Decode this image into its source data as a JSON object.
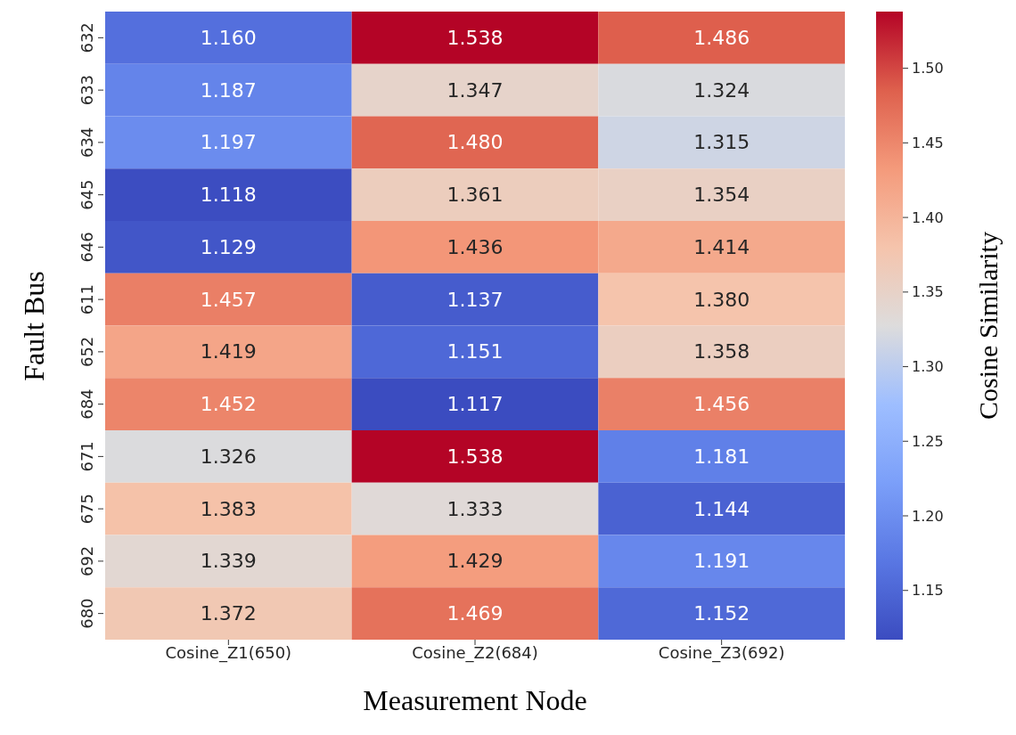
{
  "chart_data": {
    "type": "heatmap",
    "xlabel": "Measurement Node",
    "ylabel": "Fault Bus",
    "clabel": "Cosine Similarity",
    "categories": [
      "Cosine_Z1(650)",
      "Cosine_Z2(684)",
      "Cosine_Z3(692)"
    ],
    "y_categories": [
      "632",
      "633",
      "634",
      "645",
      "646",
      "611",
      "652",
      "684",
      "671",
      "675",
      "692",
      "680"
    ],
    "cells": [
      [
        1.16,
        1.538,
        1.486
      ],
      [
        1.187,
        1.347,
        1.324
      ],
      [
        1.197,
        1.48,
        1.315
      ],
      [
        1.118,
        1.361,
        1.354
      ],
      [
        1.129,
        1.436,
        1.414
      ],
      [
        1.457,
        1.137,
        1.38
      ],
      [
        1.419,
        1.151,
        1.358
      ],
      [
        1.452,
        1.117,
        1.456
      ],
      [
        1.326,
        1.538,
        1.181
      ],
      [
        1.383,
        1.333,
        1.144
      ],
      [
        1.339,
        1.429,
        1.191
      ],
      [
        1.372,
        1.469,
        1.152
      ]
    ],
    "cell_labels": [
      [
        "1.160",
        "1.538",
        "1.486"
      ],
      [
        "1.187",
        "1.347",
        "1.324"
      ],
      [
        "1.197",
        "1.480",
        "1.315"
      ],
      [
        "1.118",
        "1.361",
        "1.354"
      ],
      [
        "1.129",
        "1.436",
        "1.414"
      ],
      [
        "1.457",
        "1.137",
        "1.380"
      ],
      [
        "1.419",
        "1.151",
        "1.358"
      ],
      [
        "1.452",
        "1.117",
        "1.456"
      ],
      [
        "1.326",
        "1.538",
        "1.181"
      ],
      [
        "1.383",
        "1.333",
        "1.144"
      ],
      [
        "1.339",
        "1.429",
        "1.191"
      ],
      [
        "1.372",
        "1.469",
        "1.152"
      ]
    ],
    "clim": [
      1.117,
      1.538
    ],
    "cticks": [
      {
        "value": 1.15,
        "label": "1.15"
      },
      {
        "value": 1.2,
        "label": "1.20"
      },
      {
        "value": 1.25,
        "label": "1.25"
      },
      {
        "value": 1.3,
        "label": "1.30"
      },
      {
        "value": 1.35,
        "label": "1.35"
      },
      {
        "value": 1.4,
        "label": "1.40"
      },
      {
        "value": 1.45,
        "label": "1.45"
      },
      {
        "value": 1.5,
        "label": "1.50"
      }
    ]
  }
}
